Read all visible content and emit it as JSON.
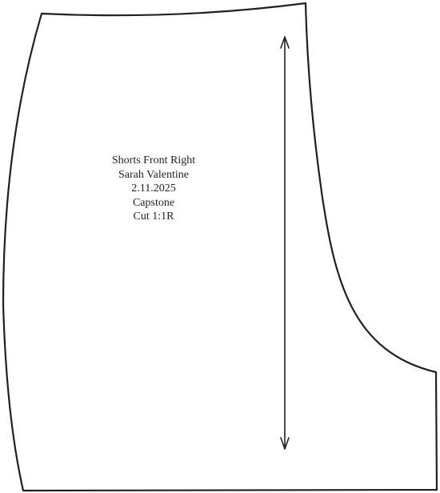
{
  "pattern_piece": {
    "label_lines": [
      "Shorts Front Right",
      "Sarah Valentine",
      "2.11.2025",
      "Capstone",
      "Cut 1:1R"
    ],
    "outline_color": "#231f20",
    "grainline_arrow": {
      "direction": "vertical",
      "arrowheads": "both-ends"
    }
  }
}
